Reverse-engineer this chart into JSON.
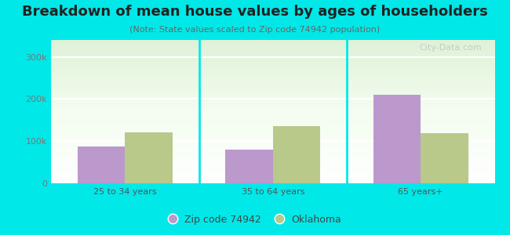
{
  "title": "Breakdown of mean house values by ages of householders",
  "subtitle": "(Note: State values scaled to Zip code 74942 population)",
  "categories": [
    "25 to 34 years",
    "35 to 64 years",
    "65 years+"
  ],
  "zip_values": [
    88000,
    80000,
    210000
  ],
  "state_values": [
    120000,
    135000,
    118000
  ],
  "zip_color": "#bb99cc",
  "state_color": "#b8c98a",
  "background_color": "#00e8e8",
  "ylim": [
    0,
    340000
  ],
  "yticks": [
    0,
    100000,
    200000,
    300000
  ],
  "ytick_labels": [
    "0",
    "100k",
    "200k",
    "300k"
  ],
  "legend_zip_label": "Zip code 74942",
  "legend_state_label": "Oklahoma",
  "bar_width": 0.32,
  "watermark": "City-Data.com",
  "title_fontsize": 13,
  "subtitle_fontsize": 8,
  "tick_fontsize": 8,
  "legend_fontsize": 9
}
